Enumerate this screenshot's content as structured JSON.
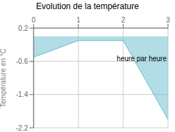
{
  "chart_data": {
    "type": "area",
    "title": "Evolution de la température",
    "ylabel": "Température en °C",
    "annotation": "heure par heure",
    "x": [
      0,
      1,
      2,
      3
    ],
    "values": [
      -0.5,
      -0.1,
      -0.1,
      -2.0
    ],
    "color": "#66bbcc",
    "xlim": [
      0,
      3
    ],
    "ylim": [
      -2.2,
      0.2
    ],
    "xticks": [
      0,
      1,
      2,
      3
    ],
    "yticks": [
      0.2,
      -0.6,
      -1.4,
      -2.2
    ],
    "grid": true
  }
}
